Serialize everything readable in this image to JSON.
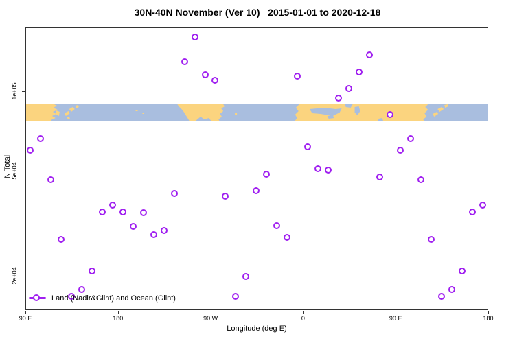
{
  "title": "30N-40N November (Ver 10)   2015-01-01 to 2020-12-18",
  "colors": {
    "marker": "#A020F0",
    "land": "#FBD47F",
    "ocean": "#A9BEDF",
    "axis": "#333333"
  },
  "legend": {
    "label": "Land (Nadir&Glint) and Ocean (Glint)"
  },
  "chart_data": {
    "type": "scatter",
    "title": "30N-40N November (Ver 10)   2015-01-01 to 2020-12-18",
    "xlabel": "Longitude (deg E)",
    "ylabel": "N Total",
    "x_scale": "linear",
    "y_scale": "log",
    "xlim": [
      90,
      540
    ],
    "ylim": [
      14800,
      175000
    ],
    "grid": false,
    "legend_position": "bottom-left-inside",
    "x_ticks": [
      {
        "value": 90,
        "label": "90 E"
      },
      {
        "value": 180,
        "label": "180"
      },
      {
        "value": 270,
        "label": "90 W"
      },
      {
        "value": 360,
        "label": "0"
      },
      {
        "value": 450,
        "label": "90 E"
      },
      {
        "value": 540,
        "label": "180"
      }
    ],
    "y_ticks": [
      {
        "value": 100000,
        "label": "1e+05"
      },
      {
        "value": 50000,
        "label": "5e+04"
      },
      {
        "value": 20000,
        "label": "2e+04"
      }
    ],
    "map_band": {
      "description": "World coastline strip for 30N-40N latitude band",
      "land_color": "#FBD47F",
      "ocean_color": "#A9BEDF",
      "value_range": [
        77000,
        89000
      ]
    },
    "series": [
      {
        "name": "Land (Nadir&Glint) and Ocean (Glint)",
        "marker": "open-circle",
        "points": [
          {
            "lon": 95,
            "n": 59500
          },
          {
            "lon": 105,
            "n": 66000
          },
          {
            "lon": 115,
            "n": 46000
          },
          {
            "lon": 125,
            "n": 27300
          },
          {
            "lon": 135,
            "n": 16600
          },
          {
            "lon": 145,
            "n": 17600
          },
          {
            "lon": 155,
            "n": 20800
          },
          {
            "lon": 165,
            "n": 34700
          },
          {
            "lon": 175,
            "n": 37000
          },
          {
            "lon": 185,
            "n": 34700
          },
          {
            "lon": 195,
            "n": 30600
          },
          {
            "lon": 205,
            "n": 34500
          },
          {
            "lon": 215,
            "n": 28500
          },
          {
            "lon": 225,
            "n": 29500
          },
          {
            "lon": 235,
            "n": 40800
          },
          {
            "lon": 245,
            "n": 129000
          },
          {
            "lon": 255,
            "n": 160000
          },
          {
            "lon": 265,
            "n": 115000
          },
          {
            "lon": 275,
            "n": 110000
          },
          {
            "lon": 285,
            "n": 40000
          },
          {
            "lon": 295,
            "n": 16600
          },
          {
            "lon": 305,
            "n": 19800
          },
          {
            "lon": 315,
            "n": 41800
          },
          {
            "lon": 325,
            "n": 48200
          },
          {
            "lon": 335,
            "n": 30900
          },
          {
            "lon": 345,
            "n": 27900
          },
          {
            "lon": 355,
            "n": 114000
          },
          {
            "lon": 365,
            "n": 61600
          },
          {
            "lon": 375,
            "n": 50600
          },
          {
            "lon": 385,
            "n": 50000
          },
          {
            "lon": 395,
            "n": 94000
          },
          {
            "lon": 405,
            "n": 102000
          },
          {
            "lon": 415,
            "n": 118000
          },
          {
            "lon": 425,
            "n": 137000
          },
          {
            "lon": 435,
            "n": 47300
          },
          {
            "lon": 445,
            "n": 81600
          },
          {
            "lon": 455,
            "n": 59500
          },
          {
            "lon": 465,
            "n": 66000
          },
          {
            "lon": 475,
            "n": 46000
          },
          {
            "lon": 485,
            "n": 27300
          },
          {
            "lon": 495,
            "n": 16600
          },
          {
            "lon": 505,
            "n": 17600
          },
          {
            "lon": 515,
            "n": 20800
          },
          {
            "lon": 525,
            "n": 34700
          },
          {
            "lon": 535,
            "n": 37000
          }
        ]
      }
    ]
  }
}
